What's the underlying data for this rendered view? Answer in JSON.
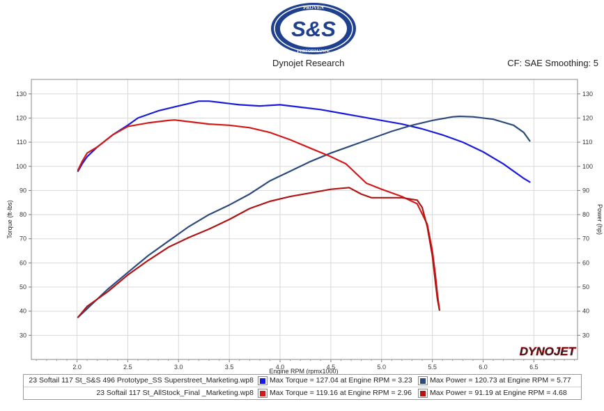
{
  "header": {
    "logo_top_text": "PROVEN",
    "logo_main_text": "S&S",
    "logo_bottom_text": "PERFORMANCE",
    "source": "Dynojet Research",
    "settings": "CF: SAE Smoothing: 5"
  },
  "watermark": "DYNOJET",
  "colors": {
    "ss_torque": "#1a1adc",
    "ss_power": "#2c4a7c",
    "stock_torque": "#d21a1a",
    "stock_power": "#b01414",
    "logo_blue": "#1f3f8f"
  },
  "legend": {
    "rows": [
      {
        "name": "23 Softail 117 St_S&S 496 Prototype_SS Superstreet_Marketing.wp8",
        "torque_text": "Max Torque = 127.04 at Engine RPM = 3.23",
        "power_text": "Max Power = 120.73 at Engine RPM = 5.77",
        "torque_color": "#1a1adc",
        "power_color": "#2c4a7c"
      },
      {
        "name": "23 Softail 117 St_AllStock_Final _Marketing.wp8",
        "torque_text": "Max Torque = 119.16 at Engine RPM = 2.96",
        "power_text": "Max Power = 91.19 at Engine RPM = 4.68",
        "torque_color": "#d21a1a",
        "power_color": "#b01414"
      }
    ]
  },
  "chart_data": {
    "type": "line",
    "xlabel": "Engine RPM (rpmx1000)",
    "ylabel_left": "Torque (ft-lbs)",
    "ylabel_right": "Power (hp)",
    "xlim": [
      1.55,
      6.93
    ],
    "ylim": [
      20,
      136
    ],
    "x_ticks": [
      "2.0",
      "2.5",
      "3.0",
      "3.5",
      "4.0",
      "4.5",
      "5.0",
      "5.5",
      "6.0",
      "6.5"
    ],
    "y_ticks": [
      "30",
      "40",
      "50",
      "60",
      "70",
      "80",
      "90",
      "100",
      "110",
      "120",
      "130"
    ],
    "grid": true,
    "series": [
      {
        "name": "Torque",
        "color": "#1a1adc",
        "x": [
          2.01,
          2.05,
          2.1,
          2.2,
          2.35,
          2.5,
          2.6,
          2.8,
          3.0,
          3.1,
          3.2,
          3.3,
          3.4,
          3.5,
          3.6,
          3.8,
          4.0,
          4.2,
          4.4,
          4.6,
          4.8,
          5.0,
          5.2,
          5.4,
          5.6,
          5.8,
          6.0,
          6.2,
          6.4,
          6.46
        ],
        "y": [
          98,
          101,
          104,
          108,
          113,
          117,
          120,
          123,
          125,
          126,
          127,
          127,
          126.5,
          126,
          125.5,
          125,
          125.5,
          124.5,
          123.5,
          122,
          120.5,
          119,
          117.5,
          115.5,
          113,
          110,
          106,
          101,
          95,
          93.5
        ]
      },
      {
        "name": "Power",
        "color": "#2c4a7c",
        "x": [
          2.01,
          2.1,
          2.3,
          2.5,
          2.7,
          2.9,
          3.1,
          3.3,
          3.5,
          3.7,
          3.9,
          4.1,
          4.3,
          4.5,
          4.7,
          4.9,
          5.1,
          5.3,
          5.5,
          5.7,
          5.77,
          5.9,
          6.1,
          6.3,
          6.4,
          6.46
        ],
        "y": [
          37.5,
          41,
          49,
          56,
          63,
          69,
          75,
          80,
          84,
          88.5,
          94,
          98,
          102,
          105.5,
          108.5,
          111.5,
          114.5,
          117,
          119,
          120.5,
          120.7,
          120.5,
          119.5,
          117,
          114,
          110.5
        ]
      },
      {
        "name": "Torque",
        "color": "#d21a1a",
        "x": [
          2.01,
          2.05,
          2.1,
          2.2,
          2.35,
          2.5,
          2.7,
          2.9,
          2.96,
          3.1,
          3.3,
          3.5,
          3.7,
          3.9,
          4.1,
          4.3,
          4.5,
          4.65,
          4.75,
          4.85,
          5.0,
          5.2,
          5.35,
          5.45,
          5.5,
          5.53,
          5.55,
          5.57
        ],
        "y": [
          98.5,
          102,
          105.5,
          108,
          113,
          116.5,
          118,
          119,
          119.2,
          118.5,
          117.5,
          117,
          116,
          114,
          111,
          107.5,
          104,
          101,
          97,
          93,
          90.5,
          87.5,
          84.5,
          76,
          65,
          55,
          47,
          40.5
        ]
      },
      {
        "name": "Power",
        "color": "#b01414",
        "x": [
          2.01,
          2.1,
          2.3,
          2.5,
          2.7,
          2.9,
          3.1,
          3.3,
          3.5,
          3.7,
          3.9,
          4.1,
          4.3,
          4.5,
          4.68,
          4.8,
          4.9,
          5.0,
          5.2,
          5.35,
          5.4,
          5.45,
          5.5,
          5.53,
          5.55,
          5.57
        ],
        "y": [
          37.5,
          42,
          48,
          55,
          61,
          66.5,
          70.5,
          74,
          78,
          82.5,
          85.5,
          87.5,
          89,
          90.5,
          91.2,
          88.5,
          87,
          87,
          87,
          86,
          83,
          75,
          63,
          52,
          45,
          40.5
        ]
      }
    ]
  }
}
